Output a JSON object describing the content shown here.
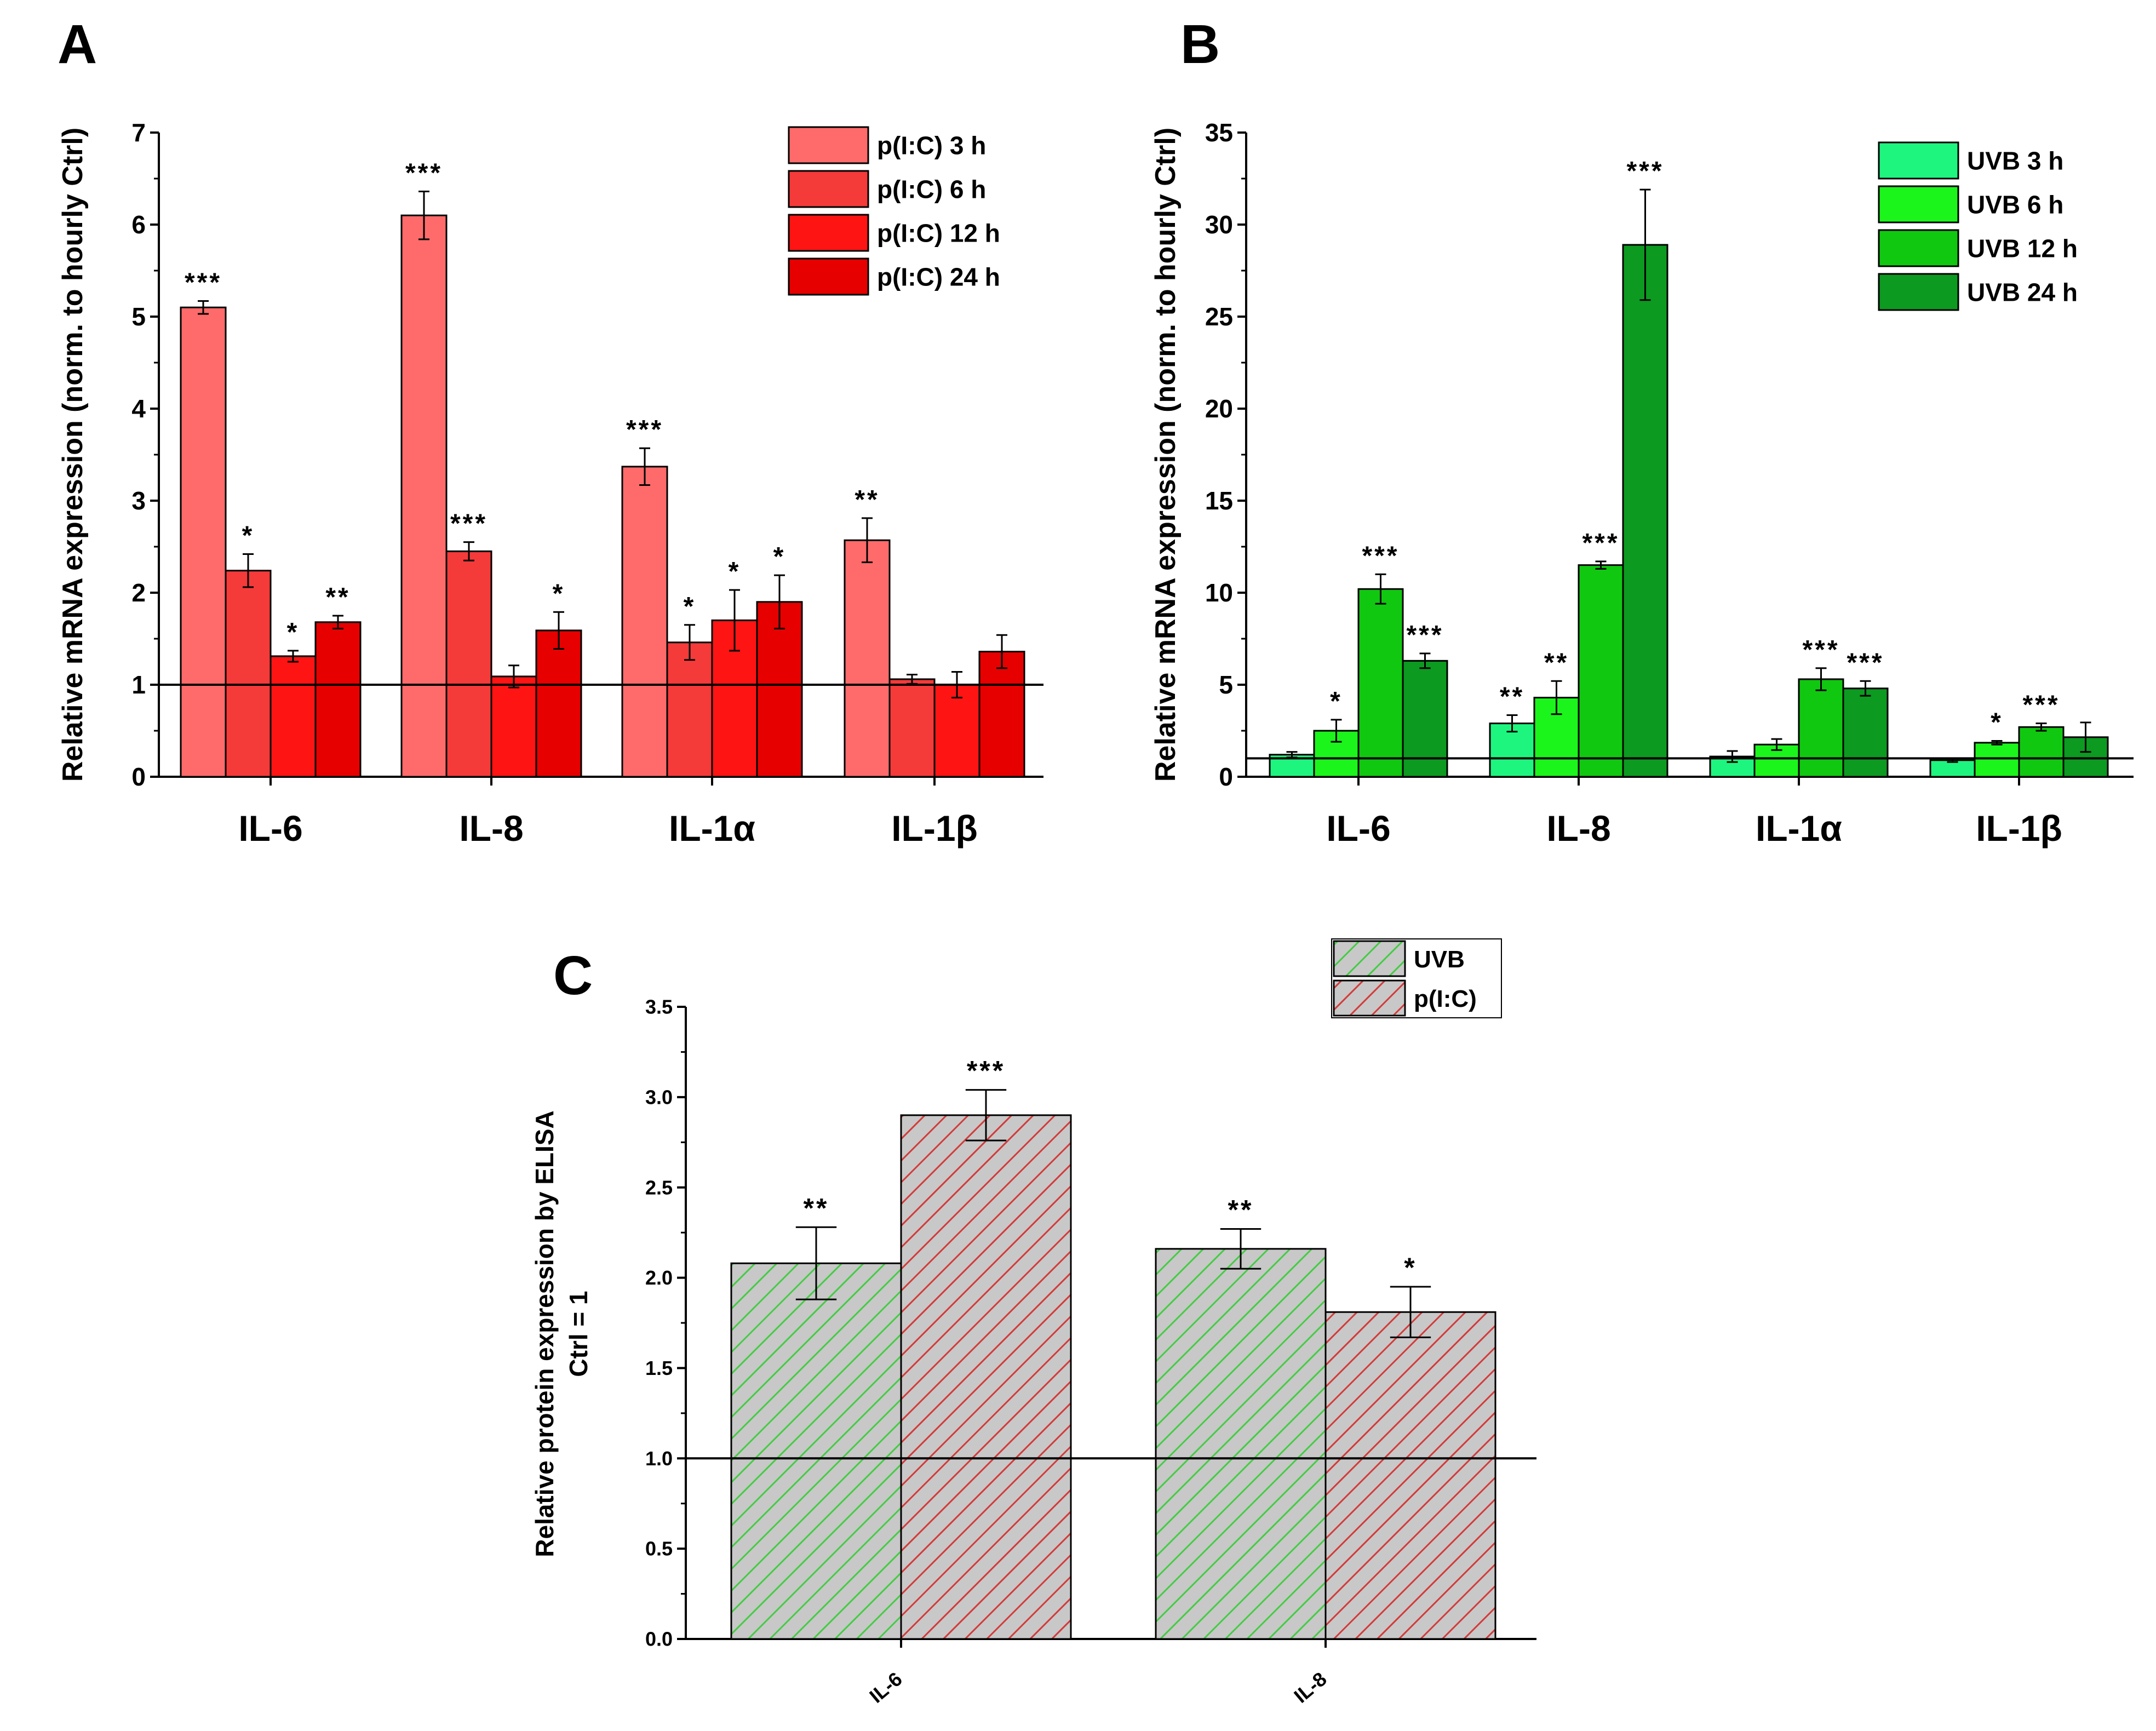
{
  "chart_data": [
    {
      "panel": "A",
      "type": "bar",
      "ylabel": "Relative mRNA expression (norm. to hourly Ctrl)",
      "xlabel": "",
      "ylim": [
        0,
        7
      ],
      "yticks": [
        "0",
        "1",
        "2",
        "3",
        "4",
        "5",
        "6",
        "7"
      ],
      "categories": [
        "IL-6",
        "IL-8",
        "IL-1α",
        "IL-1β"
      ],
      "reference_line": 1,
      "legend_position": "top-right",
      "series": [
        {
          "name": "p(I:C) 3 h",
          "color": "#ff6b6b",
          "values": [
            5.1,
            6.1,
            3.37,
            2.57
          ],
          "errors": [
            0.07,
            0.26,
            0.2,
            0.24
          ],
          "sig": [
            "***",
            "***",
            "***",
            "**"
          ]
        },
        {
          "name": "p(I:C) 6 h",
          "color": "#f53a3a",
          "values": [
            2.24,
            2.45,
            1.46,
            1.06
          ],
          "errors": [
            0.18,
            0.1,
            0.19,
            0.05
          ],
          "sig": [
            "*",
            "***",
            "*",
            ""
          ]
        },
        {
          "name": "p(I:C) 12 h",
          "color": "#ff1414",
          "values": [
            1.31,
            1.09,
            1.7,
            1.0
          ],
          "errors": [
            0.06,
            0.12,
            0.33,
            0.14
          ],
          "sig": [
            "*",
            "",
            "*",
            ""
          ]
        },
        {
          "name": "p(I:C) 24 h",
          "color": "#e60000",
          "values": [
            1.68,
            1.59,
            1.9,
            1.36
          ],
          "errors": [
            0.07,
            0.2,
            0.29,
            0.18
          ],
          "sig": [
            "**",
            "*",
            "*",
            ""
          ]
        }
      ]
    },
    {
      "panel": "B",
      "type": "bar",
      "ylabel": "Relative mRNA expression (norm. to hourly Ctrl)",
      "xlabel": "",
      "ylim": [
        0,
        35
      ],
      "yticks": [
        "0",
        "5",
        "10",
        "15",
        "20",
        "25",
        "30",
        "35"
      ],
      "categories": [
        "IL-6",
        "IL-8",
        "IL-1α",
        "IL-1β"
      ],
      "reference_line": 1,
      "legend_position": "top-right",
      "series": [
        {
          "name": "UVB 3 h",
          "color": "#1ef57f",
          "values": [
            1.2,
            2.9,
            1.1,
            0.9
          ],
          "errors": [
            0.15,
            0.45,
            0.3,
            0.1
          ],
          "sig": [
            "",
            "**",
            "",
            ""
          ]
        },
        {
          "name": "UVB 6 h",
          "color": "#1bf51b",
          "values": [
            2.5,
            4.3,
            1.75,
            1.85
          ],
          "errors": [
            0.6,
            0.9,
            0.3,
            0.1
          ],
          "sig": [
            "*",
            "**",
            "",
            "*"
          ]
        },
        {
          "name": "UVB 12 h",
          "color": "#11c811",
          "values": [
            10.2,
            11.5,
            5.3,
            2.7
          ],
          "errors": [
            0.8,
            0.2,
            0.6,
            0.2
          ],
          "sig": [
            "***",
            "***",
            "***",
            "***"
          ]
        },
        {
          "name": "UVB 24 h",
          "color": "#0c9a20",
          "values": [
            6.3,
            28.9,
            4.8,
            2.15
          ],
          "errors": [
            0.4,
            3.0,
            0.4,
            0.8
          ],
          "sig": [
            "***",
            "***",
            "***",
            ""
          ]
        }
      ]
    },
    {
      "panel": "C",
      "type": "bar",
      "ylabel": "Relative protein expression by ELISA",
      "ylabel2": "Ctrl = 1",
      "xlabel": "",
      "ylim": [
        0,
        3.5
      ],
      "yticks": [
        "0.0",
        "0.5",
        "1.0",
        "1.5",
        "2.0",
        "2.5",
        "3.0",
        "3.5"
      ],
      "categories": [
        "IL-6",
        "IL-8"
      ],
      "reference_line": 1,
      "legend_position": "top-right",
      "series": [
        {
          "name": "UVB",
          "color": "#5ed15e",
          "values": [
            2.08,
            2.16
          ],
          "errors": [
            0.2,
            0.11
          ],
          "sig": [
            "**",
            "**"
          ]
        },
        {
          "name": "p(I:C)",
          "color": "#d43a3a",
          "values": [
            2.9,
            1.81
          ],
          "errors": [
            0.14,
            0.14
          ],
          "sig": [
            "***",
            "*"
          ]
        }
      ]
    }
  ],
  "panel_labels": {
    "a": "A",
    "b": "B",
    "c": "C"
  }
}
